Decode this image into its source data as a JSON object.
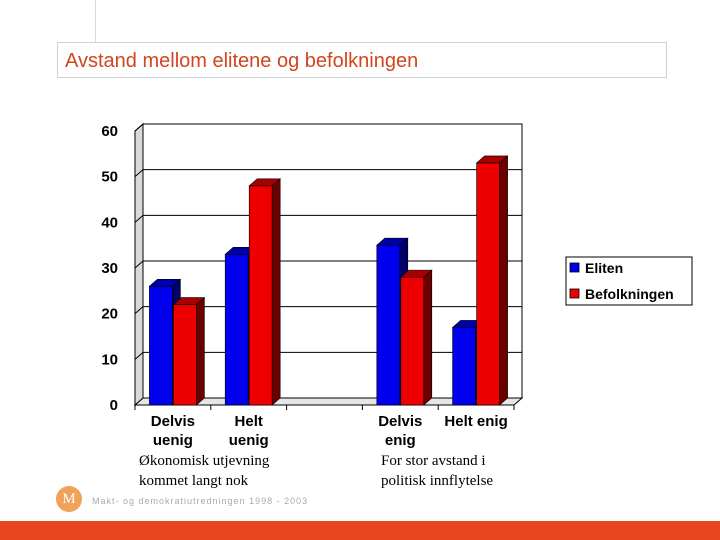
{
  "title": "Avstand mellom elitene og befolkningen",
  "chart_data": {
    "type": "bar",
    "categories": [
      [
        "Delvis",
        "uenig"
      ],
      [
        "Helt",
        "uenig"
      ],
      [
        "",
        ""
      ],
      [
        "Delvis",
        "enig"
      ],
      [
        "Helt enig",
        ""
      ]
    ],
    "series": [
      {
        "name": "Eliten",
        "color": "#0000ee",
        "values": [
          26,
          33,
          null,
          35,
          17
        ]
      },
      {
        "name": "Befolkningen",
        "color": "#ee0000",
        "values": [
          22,
          48,
          null,
          28,
          53
        ]
      }
    ],
    "ylim": [
      0,
      60
    ],
    "yticks": [
      "0",
      "10",
      "20",
      "30",
      "40",
      "50",
      "60"
    ],
    "grid": true,
    "legend_position": "right",
    "group_labels": [
      [
        "Økonomisk utjevning",
        "kommet langt nok"
      ],
      [
        "For stor avstand i",
        "politisk innflytelse"
      ]
    ]
  },
  "footer": {
    "logo_letter": "M",
    "text": "Makt- og demokratiutredningen  1998 - 2003"
  },
  "colors": {
    "title": "#d2461e",
    "bottom_bar": "#e8461e",
    "logo": "#f0a15a"
  }
}
